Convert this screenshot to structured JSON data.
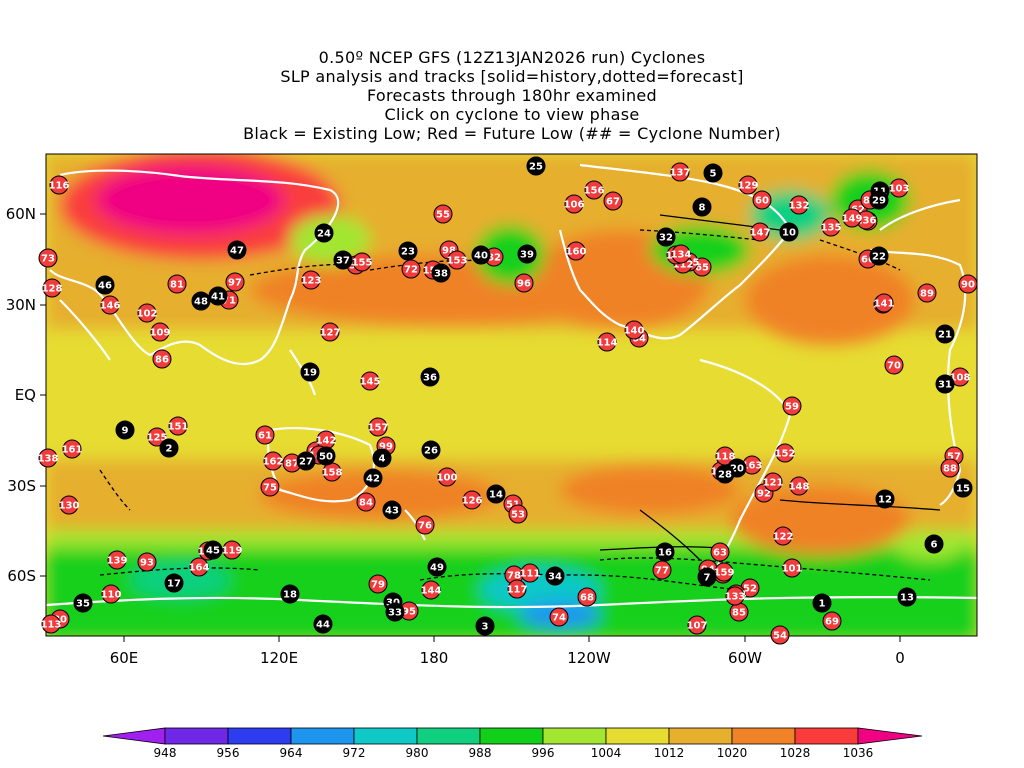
{
  "title_lines": [
    "0.50º NCEP GFS (12Z13JAN2026 run) Cyclones",
    "SLP analysis and tracks [solid=history,dotted=forecast]",
    "Forecasts through 180hr examined",
    "Click on cyclone to view phase",
    "Black = Existing Low; Red = Future Low (## = Cyclone Number)"
  ],
  "axes": {
    "lon_labels": [
      "60E",
      "120E",
      "180",
      "120W",
      "60W",
      "0"
    ],
    "lat_labels": [
      "60N",
      "30N",
      "EQ",
      "30S",
      "60S"
    ]
  },
  "colorbar": {
    "levels": [
      "948",
      "956",
      "964",
      "972",
      "980",
      "988",
      "996",
      "1004",
      "1012",
      "1020",
      "1028",
      "1036"
    ],
    "colors": [
      "#a020f0",
      "#6e28e6",
      "#2e3cf0",
      "#1e96f0",
      "#10c8c8",
      "#10d080",
      "#12d01a",
      "#a2e632",
      "#e6dc32",
      "#e6af2d",
      "#f08228",
      "#fa3c3c",
      "#f00082"
    ]
  },
  "colors": {
    "existing_low": "#000000",
    "future_low": "#f03c3c",
    "coastline": "#ffffff"
  },
  "cyclones": {
    "existing": [
      "1",
      "2",
      "3",
      "4",
      "5",
      "6",
      "7",
      "8",
      "9",
      "10",
      "11",
      "12",
      "13",
      "14",
      "15",
      "16",
      "17",
      "18",
      "19",
      "20",
      "21",
      "22",
      "23",
      "24",
      "25",
      "26",
      "27",
      "28",
      "29",
      "30",
      "31",
      "32",
      "33",
      "34",
      "35",
      "36",
      "37",
      "38",
      "39",
      "40",
      "41",
      "42",
      "43",
      "44",
      "45",
      "46",
      "47",
      "48",
      "49",
      "50"
    ],
    "future": [
      "51",
      "52",
      "53",
      "54",
      "55",
      "56",
      "57",
      "58",
      "59",
      "60",
      "61",
      "62",
      "63",
      "64",
      "65",
      "66",
      "67",
      "68",
      "69",
      "70",
      "71",
      "72",
      "73",
      "74",
      "75",
      "76",
      "77",
      "78",
      "79",
      "80",
      "81",
      "82",
      "83",
      "84",
      "85",
      "86",
      "87",
      "88",
      "89",
      "90",
      "91",
      "92",
      "93",
      "94",
      "95",
      "96",
      "97",
      "98",
      "99",
      "100",
      "101",
      "102",
      "103",
      "104",
      "105",
      "106",
      "107",
      "108",
      "109",
      "110",
      "111",
      "112",
      "113",
      "114",
      "115",
      "116",
      "117",
      "118",
      "119",
      "120",
      "121",
      "122",
      "123",
      "124",
      "125",
      "126",
      "127",
      "128",
      "129",
      "130",
      "131",
      "132",
      "133",
      "134",
      "135",
      "136",
      "137",
      "138",
      "139",
      "140",
      "141",
      "142",
      "143",
      "144",
      "145",
      "146",
      "147",
      "148",
      "149",
      "150",
      "151",
      "152",
      "153",
      "154",
      "155",
      "156",
      "157",
      "158",
      "159",
      "160",
      "161",
      "162",
      "163",
      "164"
    ]
  }
}
